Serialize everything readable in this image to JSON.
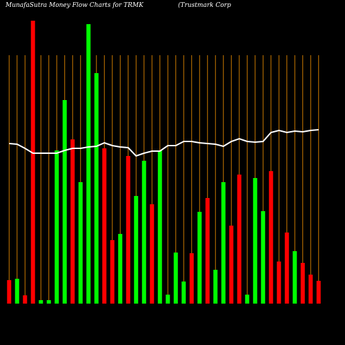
{
  "chart_data": {
    "type": "bar",
    "title": "MunafaSutra  Money Flow  Charts for TRMK",
    "subtitle": "(Trustmark Corp",
    "categories": [
      null,
      null,
      null,
      null,
      null,
      null,
      null,
      null,
      null,
      null,
      null,
      null,
      null,
      null,
      null,
      null,
      null,
      null,
      null,
      null,
      null,
      null,
      null,
      null,
      null,
      null,
      null,
      null,
      null,
      null,
      null,
      null,
      null,
      null,
      null,
      null,
      null,
      null,
      null,
      null
    ],
    "values": [
      34,
      36,
      12,
      410,
      5,
      5,
      222,
      295,
      238,
      176,
      405,
      334,
      225,
      92,
      101,
      214,
      156,
      207,
      144,
      222,
      13,
      74,
      32,
      73,
      133,
      153,
      49,
      176,
      113,
      187,
      13,
      182,
      134,
      192,
      61,
      103,
      76,
      59,
      42,
      33
    ],
    "colors": [
      "#ff0000",
      "#00ff00",
      "#ff0000",
      "#ff0000",
      "#00ff00",
      "#00ff00",
      "#00ff00",
      "#00ff00",
      "#ff0000",
      "#00ff00",
      "#00ff00",
      "#00ff00",
      "#ff0000",
      "#ff0000",
      "#00ff00",
      "#ff0000",
      "#00ff00",
      "#00ff00",
      "#ff0000",
      "#00ff00",
      "#00ff00",
      "#00ff00",
      "#00ff00",
      "#ff0000",
      "#00ff00",
      "#ff0000",
      "#00ff00",
      "#00ff00",
      "#ff0000",
      "#ff0000",
      "#00ff00",
      "#00ff00",
      "#00ff00",
      "#ff0000",
      "#ff0000",
      "#ff0000",
      "#00ff00",
      "#ff0000",
      "#ff0000",
      "#ff0000"
    ],
    "line": [
      232,
      231,
      225,
      218,
      218,
      218,
      218,
      222,
      225,
      225,
      227,
      228,
      233,
      229,
      227,
      226,
      214,
      218,
      221,
      221,
      229,
      229,
      235,
      235,
      233,
      232,
      231,
      228,
      235,
      239,
      235,
      234,
      235,
      248,
      251,
      248,
      250,
      249,
      251,
      252
    ],
    "line_color": "#ffffff",
    "grid_color": "#cc7a00",
    "ylim": [
      0,
      410
    ]
  }
}
